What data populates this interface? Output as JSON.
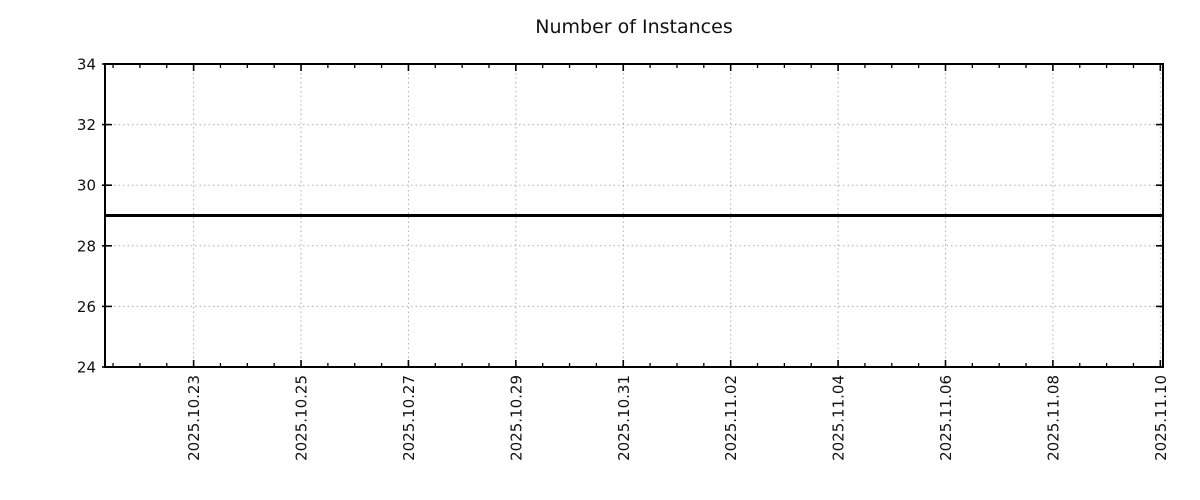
{
  "page": {
    "background": "#ffffff"
  },
  "chart_data": {
    "type": "line",
    "title": "Number of Instances",
    "x_tick_labels": [
      "2025.10.23",
      "2025.10.25",
      "2025.10.27",
      "2025.10.29",
      "2025.10.31",
      "2025.11.02",
      "2025.11.04",
      "2025.11.06",
      "2025.11.08",
      "2025.11.10"
    ],
    "x_axis": {
      "major_interval_days": 2,
      "minor_interval_days": 0.5,
      "days_before_first_tick": 1.65,
      "days_after_last_tick": 0.05,
      "label_rotation_deg": 90
    },
    "y_ticks": [
      24,
      26,
      28,
      30,
      32,
      34
    ],
    "ylim": [
      24,
      34
    ],
    "grid": {
      "style": "dotted",
      "color": "#b0b0b0",
      "vertical_at_major_x_ticks": true,
      "horizontal_at_major_y_ticks": true
    },
    "legend": "none",
    "series": [
      {
        "name": "Number of Instances",
        "shape": "constant-horizontal-line",
        "value": 29,
        "spans_full_x_range": true,
        "color": "#000000",
        "stroke_width": 3
      }
    ],
    "colors": {
      "axis": "#000000",
      "text": "#111111",
      "background": "#ffffff"
    }
  }
}
